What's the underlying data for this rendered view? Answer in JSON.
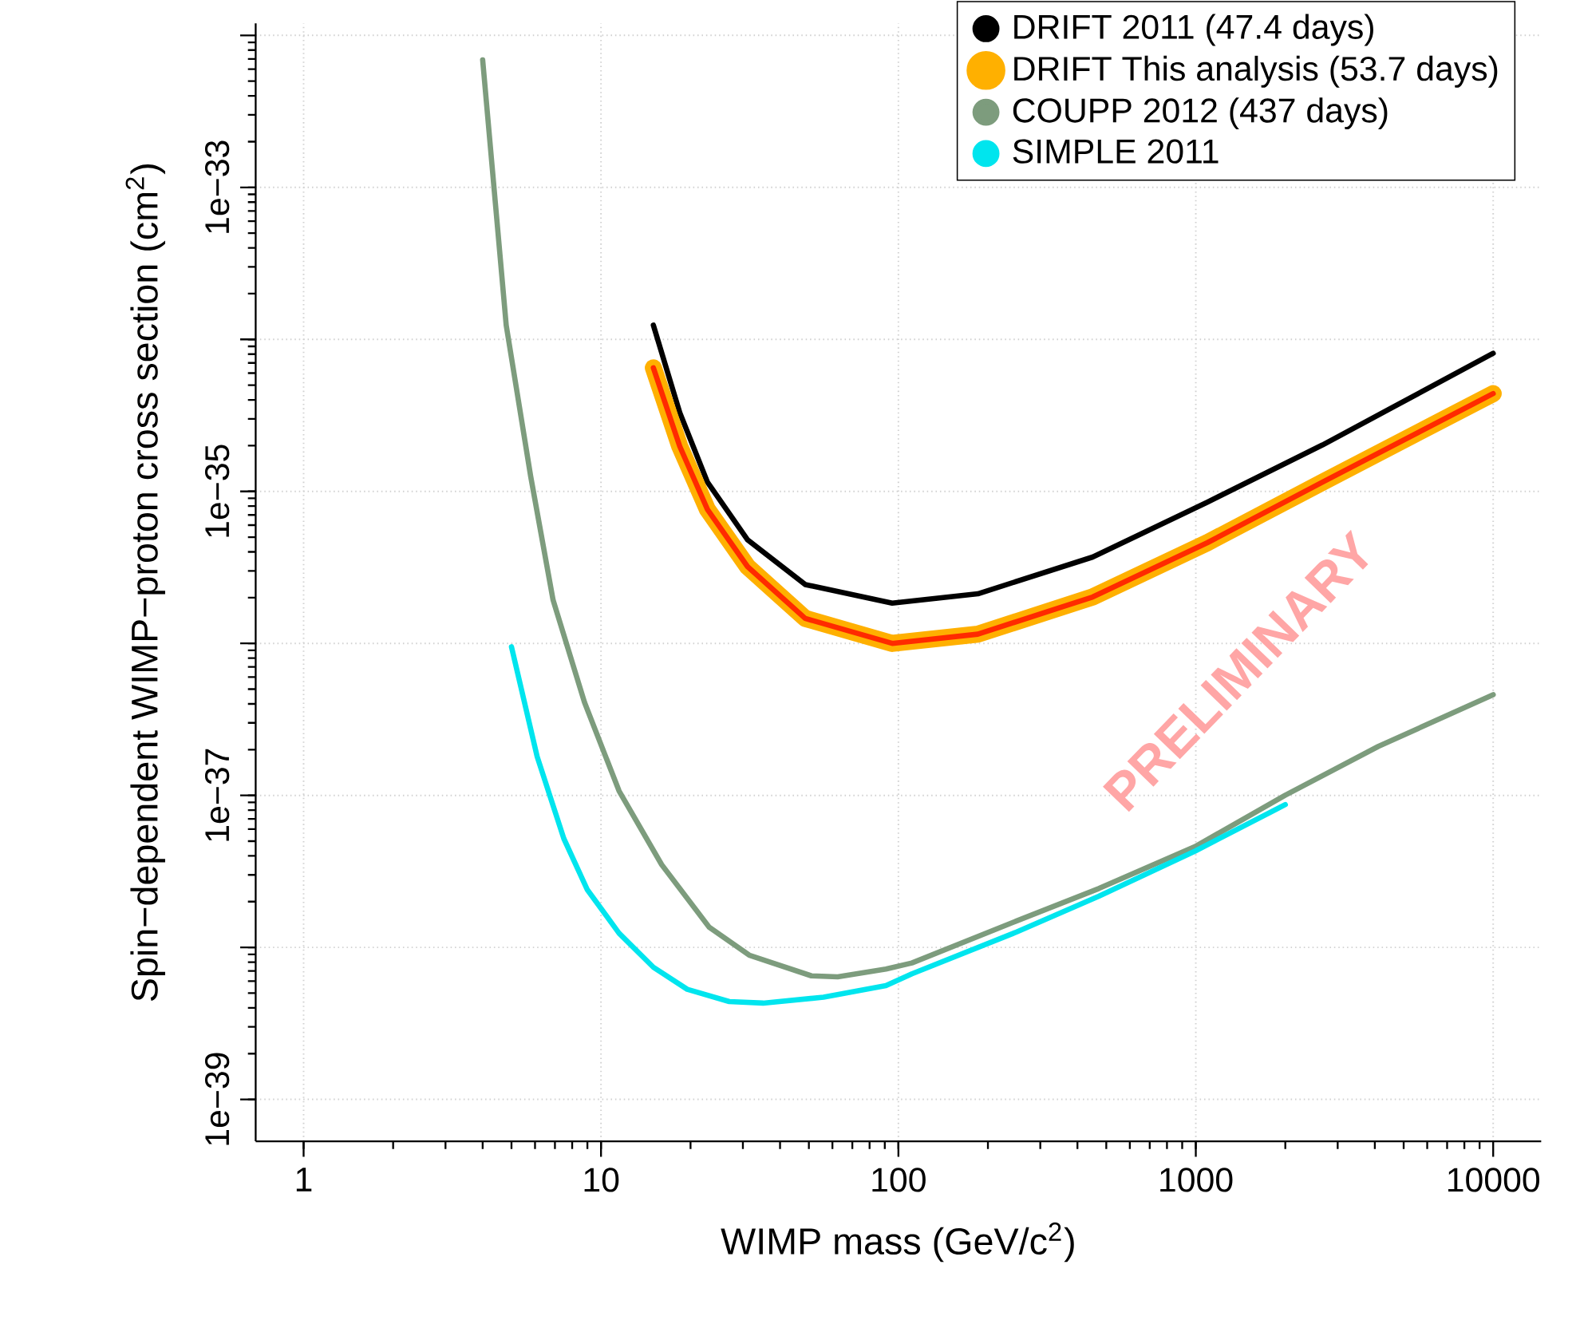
{
  "chart_data": {
    "type": "line",
    "xlabel": "WIMP mass (GeV/c$^{2}$)",
    "ylabel": "Spin−dependent WIMP−proton cross section (cm$^{2}$)",
    "log": "xy",
    "grid": true,
    "legend": "top right",
    "marker": "none",
    "line_style": "solid",
    "xlim": [
      0.69,
      14500
    ],
    "ylim": [
      5.3e-40,
      1.2e-32
    ],
    "xticks": [
      1,
      10,
      100,
      1000,
      10000
    ],
    "yticks": [
      {
        "value": 1e-39,
        "label": "1e−39"
      },
      {
        "value": 1e-38,
        "label": null
      },
      {
        "value": 1e-37,
        "label": "1e−37"
      },
      {
        "value": 1e-36,
        "label": null
      },
      {
        "value": 1e-35,
        "label": "1e−35"
      },
      {
        "value": 1e-34,
        "label": null
      },
      {
        "value": 1e-33,
        "label": "1e−33"
      },
      {
        "value": 1e-32,
        "label": null
      }
    ],
    "annotations": [
      "PRELIMINARY"
    ],
    "series": [
      {
        "name": "DRIFT 2011 (47.4 days)",
        "color": "#000000",
        "x": [
          15,
          18.4,
          22.8,
          31.1,
          48.6,
          95.3,
          185,
          450,
          1094,
          2667,
          10000
        ],
        "values": [
          1.24e-34,
          3.3e-35,
          1.15e-35,
          4.8e-36,
          2.44e-36,
          1.84e-36,
          2.12e-36,
          3.7e-36,
          8.5e-36,
          2.02e-35,
          8.1e-35
        ]
      },
      {
        "name": "DRIFT This analysis (53.7 days)",
        "color": "#ffb000",
        "x": [
          15,
          18.4,
          22.8,
          31.1,
          48.6,
          95.3,
          185,
          450,
          1094,
          2667,
          10000
        ],
        "values": [
          6.5e-35,
          1.98e-35,
          7.6e-36,
          3.2e-36,
          1.46e-36,
          1e-36,
          1.15e-36,
          2.02e-36,
          4.6e-36,
          1.15e-35,
          4.4e-35
        ]
      },
      {
        "color": "#ff2a00",
        "x": [
          15,
          18.4,
          22.8,
          31.1,
          48.6,
          95.3,
          185,
          450,
          1094,
          2667,
          10000
        ],
        "values": [
          6.5e-35,
          1.98e-35,
          7.6e-36,
          3.2e-36,
          1.46e-36,
          1e-36,
          1.15e-36,
          2.02e-36,
          4.6e-36,
          1.15e-35,
          4.4e-35
        ]
      },
      {
        "name": "COUPP 2012 (437 days)",
        "color": "#7d9c7d",
        "x": [
          4,
          4.8,
          5.8,
          6.9,
          8.8,
          11.5,
          16,
          23.1,
          31.5,
          51,
          62.5,
          90.8,
          111,
          249,
          472,
          994,
          1995,
          4110,
          10000
        ],
        "values": [
          6.9e-33,
          1.24e-34,
          1.26e-35,
          1.93e-36,
          4.1e-37,
          1.07e-37,
          3.5e-38,
          1.36e-38,
          8.9e-39,
          6.5e-39,
          6.4e-39,
          7.2e-39,
          7.9e-39,
          1.49e-38,
          2.44e-38,
          4.6e-38,
          1e-37,
          2.1e-37,
          4.6e-37
        ]
      },
      {
        "name": "SIMPLE 2011",
        "color": "#00e5ee",
        "x": [
          5,
          6.1,
          7.5,
          9,
          11.5,
          15,
          19.5,
          27,
          35.1,
          56,
          90.8,
          111,
          249,
          472,
          994,
          2000
        ],
        "values": [
          9.5e-37,
          1.8e-37,
          5.2e-38,
          2.39e-38,
          1.24e-38,
          7.4e-39,
          5.3e-39,
          4.4e-39,
          4.3e-39,
          4.7e-39,
          5.6e-39,
          6.7e-39,
          1.26e-38,
          2.17e-38,
          4.3e-38,
          8.7e-38
        ]
      }
    ]
  }
}
